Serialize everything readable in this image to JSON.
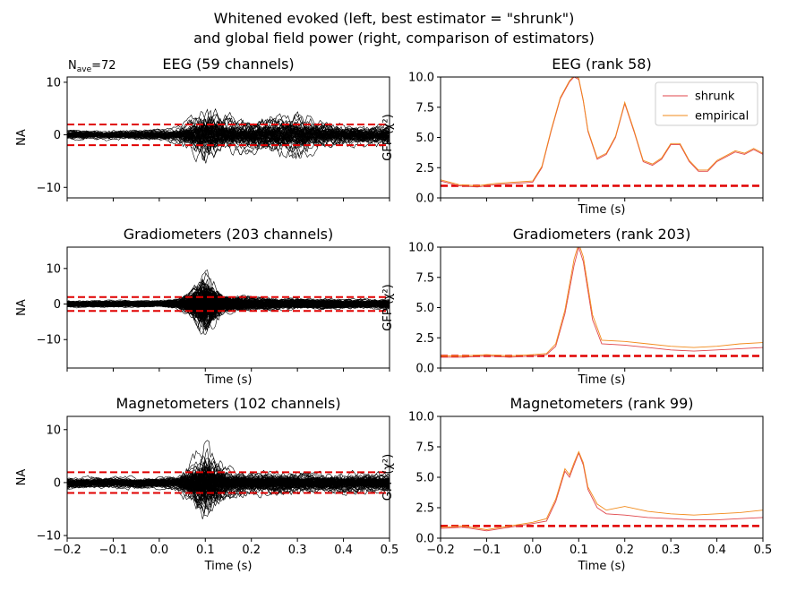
{
  "figure": {
    "title_line1": "Whitened evoked (left, best estimator = \"shrunk\")",
    "title_line2": "and global field power (right, comparison of estimators)",
    "nave_label": "N",
    "nave_sub": "ave",
    "nave_value": "=72"
  },
  "colors": {
    "trace": "#000000",
    "threshold": "#e00000",
    "shrunk": "#e0464b",
    "empirical": "#f28a1a"
  },
  "chart_data": [
    {
      "id": "evoked-eeg",
      "type": "line",
      "title": "EEG (59 channels)",
      "xlabel": "",
      "ylabel": "NA",
      "xlim": [
        -0.2,
        0.5
      ],
      "ylim": [
        -12,
        11
      ],
      "xticks": [
        -0.2,
        -0.1,
        0.0,
        0.1,
        0.2,
        0.3,
        0.4,
        0.5
      ],
      "xticklabels": [
        "",
        "",
        "",
        "",
        "",
        "",
        "",
        ""
      ],
      "yticks": [
        -10,
        0,
        10
      ],
      "yticklabels": [
        "−10",
        "0",
        "10"
      ],
      "channels": 59,
      "seed": 11,
      "envelope": [
        [
          -0.2,
          1.5
        ],
        [
          0.0,
          1.5
        ],
        [
          0.04,
          2.5
        ],
        [
          0.08,
          6.0
        ],
        [
          0.1,
          8.5
        ],
        [
          0.13,
          6.5
        ],
        [
          0.17,
          5.0
        ],
        [
          0.22,
          5.0
        ],
        [
          0.3,
          6.0
        ],
        [
          0.36,
          4.0
        ],
        [
          0.45,
          3.0
        ],
        [
          0.5,
          3.0
        ]
      ],
      "threshold_lines": [
        -1.96,
        1.96
      ]
    },
    {
      "id": "evoked-grad",
      "type": "line",
      "title": "Gradiometers (203 channels)",
      "xlabel": "Time (s)",
      "ylabel": "NA",
      "xlim": [
        -0.2,
        0.5
      ],
      "ylim": [
        -18,
        16
      ],
      "xticks": [
        -0.2,
        -0.1,
        0.0,
        0.1,
        0.2,
        0.3,
        0.4,
        0.5
      ],
      "xticklabels": [
        "",
        "",
        "",
        "",
        "",
        "",
        "",
        ""
      ],
      "yticks": [
        -10,
        0,
        10
      ],
      "yticklabels": [
        "−10",
        "0",
        "10"
      ],
      "channels": 203,
      "seed": 23,
      "envelope": [
        [
          -0.2,
          1.3
        ],
        [
          0.0,
          1.3
        ],
        [
          0.04,
          1.8
        ],
        [
          0.07,
          5.0
        ],
        [
          0.09,
          10.0
        ],
        [
          0.1,
          13.0
        ],
        [
          0.115,
          10.0
        ],
        [
          0.14,
          4.0
        ],
        [
          0.2,
          2.5
        ],
        [
          0.3,
          2.0
        ],
        [
          0.5,
          1.8
        ]
      ],
      "threshold_lines": [
        -1.96,
        1.96
      ]
    },
    {
      "id": "evoked-mag",
      "type": "line",
      "title": "Magnetometers (102 channels)",
      "xlabel": "Time (s)",
      "ylabel": "NA",
      "xlim": [
        -0.2,
        0.5
      ],
      "ylim": [
        -10.5,
        12.5
      ],
      "xticks": [
        -0.2,
        -0.1,
        0.0,
        0.1,
        0.2,
        0.3,
        0.4,
        0.5
      ],
      "xticklabels": [
        "−0.2",
        "−0.1",
        "0.0",
        "0.1",
        "0.2",
        "0.3",
        "0.4",
        "0.5"
      ],
      "yticks": [
        -10,
        0,
        10
      ],
      "yticklabels": [
        "−10",
        "0",
        "10"
      ],
      "channels": 102,
      "seed": 37,
      "envelope": [
        [
          -0.2,
          1.5
        ],
        [
          0.0,
          1.5
        ],
        [
          0.04,
          2.0
        ],
        [
          0.08,
          7.0
        ],
        [
          0.1,
          10.0
        ],
        [
          0.12,
          7.0
        ],
        [
          0.15,
          4.0
        ],
        [
          0.22,
          3.0
        ],
        [
          0.5,
          2.5
        ]
      ],
      "threshold_lines": [
        -1.96,
        1.96
      ]
    },
    {
      "id": "gfp-eeg",
      "type": "line",
      "title": "EEG (rank 58)",
      "xlabel": "Time (s)",
      "ylabel": "GFP (χ²)",
      "xlim": [
        -0.2,
        0.5
      ],
      "ylim": [
        0,
        10
      ],
      "xticks": [
        -0.2,
        -0.1,
        0.0,
        0.1,
        0.2,
        0.3,
        0.4,
        0.5
      ],
      "xticklabels": [
        "",
        "",
        "",
        "",
        "",
        "",
        "",
        ""
      ],
      "yticks": [
        0,
        2.5,
        5,
        7.5,
        10
      ],
      "yticklabels": [
        "0.0",
        "2.5",
        "5.0",
        "7.5",
        "10.0"
      ],
      "legend": "top-right",
      "reference_line": 1.0,
      "x": [
        -0.2,
        -0.16,
        -0.12,
        -0.08,
        -0.04,
        0.0,
        0.02,
        0.04,
        0.06,
        0.08,
        0.09,
        0.1,
        0.11,
        0.12,
        0.14,
        0.16,
        0.18,
        0.2,
        0.22,
        0.24,
        0.26,
        0.28,
        0.3,
        0.32,
        0.34,
        0.36,
        0.38,
        0.4,
        0.42,
        0.44,
        0.46,
        0.48,
        0.5
      ],
      "series": [
        {
          "name": "shrunk",
          "values": [
            1.4,
            1.0,
            0.9,
            1.1,
            1.2,
            1.3,
            2.5,
            5.5,
            8.2,
            9.6,
            10.0,
            9.8,
            8.0,
            5.5,
            3.2,
            3.6,
            5.0,
            7.8,
            5.5,
            3.0,
            2.7,
            3.2,
            4.4,
            4.4,
            3.0,
            2.2,
            2.2,
            3.0,
            3.4,
            3.8,
            3.6,
            4.0,
            3.6
          ]
        },
        {
          "name": "empirical",
          "values": [
            1.5,
            1.1,
            1.0,
            1.2,
            1.3,
            1.4,
            2.6,
            5.6,
            8.3,
            9.7,
            10.1,
            9.9,
            8.1,
            5.6,
            3.3,
            3.7,
            5.1,
            7.9,
            5.6,
            3.1,
            2.8,
            3.3,
            4.5,
            4.5,
            3.1,
            2.3,
            2.3,
            3.1,
            3.5,
            3.9,
            3.7,
            4.1,
            3.7
          ]
        }
      ]
    },
    {
      "id": "gfp-grad",
      "type": "line",
      "title": "Gradiometers (rank 203)",
      "xlabel": "Time (s)",
      "ylabel": "GFP (χ²)",
      "xlim": [
        -0.2,
        0.5
      ],
      "ylim": [
        0,
        10
      ],
      "xticks": [
        -0.2,
        -0.1,
        0.0,
        0.1,
        0.2,
        0.3,
        0.4,
        0.5
      ],
      "xticklabels": [
        "",
        "",
        "",
        "",
        "",
        "",
        "",
        ""
      ],
      "yticks": [
        0,
        2.5,
        5,
        7.5,
        10
      ],
      "yticklabels": [
        "0.0",
        "2.5",
        "5.0",
        "7.5",
        "10.0"
      ],
      "reference_line": 1.0,
      "x": [
        -0.2,
        -0.15,
        -0.1,
        -0.05,
        0.0,
        0.03,
        0.05,
        0.07,
        0.09,
        0.1,
        0.11,
        0.13,
        0.15,
        0.2,
        0.25,
        0.3,
        0.35,
        0.4,
        0.45,
        0.5
      ],
      "series": [
        {
          "name": "shrunk",
          "values": [
            0.9,
            0.9,
            1.0,
            0.9,
            1.0,
            1.1,
            1.8,
            4.5,
            8.5,
            10.0,
            8.8,
            4.0,
            2.0,
            1.9,
            1.7,
            1.5,
            1.4,
            1.5,
            1.6,
            1.7
          ]
        },
        {
          "name": "empirical",
          "values": [
            1.0,
            1.0,
            1.1,
            1.0,
            1.1,
            1.2,
            2.0,
            4.8,
            9.0,
            10.3,
            9.2,
            4.4,
            2.3,
            2.2,
            2.0,
            1.8,
            1.7,
            1.8,
            2.0,
            2.1
          ]
        }
      ]
    },
    {
      "id": "gfp-mag",
      "type": "line",
      "title": "Magnetometers (rank 99)",
      "xlabel": "Time (s)",
      "ylabel": "GFP (χ²)",
      "xlim": [
        -0.2,
        0.5
      ],
      "ylim": [
        0,
        10
      ],
      "xticks": [
        -0.2,
        -0.1,
        0.0,
        0.1,
        0.2,
        0.3,
        0.4,
        0.5
      ],
      "xticklabels": [
        "−0.2",
        "−0.1",
        "0.0",
        "0.1",
        "0.2",
        "0.3",
        "0.4",
        "0.5"
      ],
      "yticks": [
        0,
        2.5,
        5,
        7.5,
        10
      ],
      "yticklabels": [
        "0.0",
        "2.5",
        "5.0",
        "7.5",
        "10.0"
      ],
      "reference_line": 1.0,
      "x": [
        -0.2,
        -0.15,
        -0.1,
        -0.05,
        0.0,
        0.03,
        0.05,
        0.07,
        0.08,
        0.09,
        0.1,
        0.11,
        0.12,
        0.14,
        0.16,
        0.2,
        0.25,
        0.3,
        0.35,
        0.4,
        0.45,
        0.5
      ],
      "series": [
        {
          "name": "shrunk",
          "values": [
            0.8,
            0.9,
            0.6,
            0.9,
            1.2,
            1.4,
            3.0,
            5.5,
            5.0,
            6.0,
            7.0,
            6.0,
            4.0,
            2.5,
            2.0,
            1.9,
            1.7,
            1.6,
            1.5,
            1.5,
            1.6,
            1.7
          ]
        },
        {
          "name": "empirical",
          "values": [
            0.9,
            1.0,
            0.7,
            1.0,
            1.3,
            1.6,
            3.2,
            5.7,
            5.2,
            6.2,
            7.1,
            6.2,
            4.2,
            2.8,
            2.3,
            2.6,
            2.2,
            2.0,
            1.9,
            2.0,
            2.1,
            2.3
          ]
        }
      ]
    }
  ]
}
